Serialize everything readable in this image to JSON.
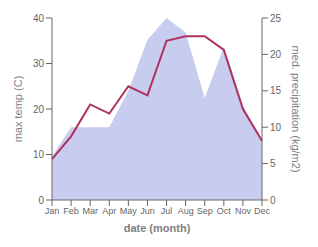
{
  "chart_data": {
    "type": "line",
    "categories": [
      "Jan",
      "Feb",
      "Mar",
      "Apr",
      "May",
      "Jun",
      "Jul",
      "Aug",
      "Sep",
      "Oct",
      "Nov",
      "Dec"
    ],
    "xlabel": "date (month)",
    "ylabel": "max temp (C)",
    "y2label": "med. precipitation (kg/m2)",
    "ylim": [
      0,
      40
    ],
    "yticks": [
      0,
      10,
      20,
      30,
      40
    ],
    "y2lim": [
      0,
      25
    ],
    "y2ticks": [
      0,
      5,
      10,
      15,
      20,
      25
    ],
    "grid": false,
    "series": [
      {
        "type": "area",
        "color": "#c8ccee",
        "axis": "y2",
        "values": [
          6,
          10,
          10,
          10,
          15,
          22,
          25,
          23,
          14,
          21,
          13,
          8
        ]
      },
      {
        "type": "line",
        "color": "#b03060",
        "values": [
          9,
          14,
          21,
          19,
          25,
          23,
          35,
          36,
          36,
          33,
          20,
          13
        ]
      }
    ]
  }
}
